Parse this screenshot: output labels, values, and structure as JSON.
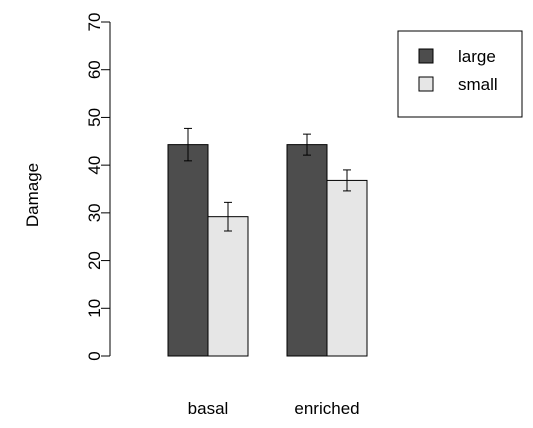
{
  "chart_data": {
    "type": "bar",
    "ylabel": "Damage",
    "xlabel": "",
    "ylim": [
      0,
      70
    ],
    "yticks": [
      0,
      10,
      20,
      30,
      40,
      50,
      60,
      70
    ],
    "categories": [
      "basal",
      "enriched"
    ],
    "series": [
      {
        "name": "large",
        "color": "#4d4d4d",
        "values": [
          44.3,
          44.3
        ],
        "errors": [
          3.4,
          2.2
        ]
      },
      {
        "name": "small",
        "color": "#e6e6e6",
        "values": [
          29.2,
          36.8
        ],
        "errors": [
          3.0,
          2.2
        ]
      }
    ],
    "legend_position": "top-right",
    "grid": false
  }
}
